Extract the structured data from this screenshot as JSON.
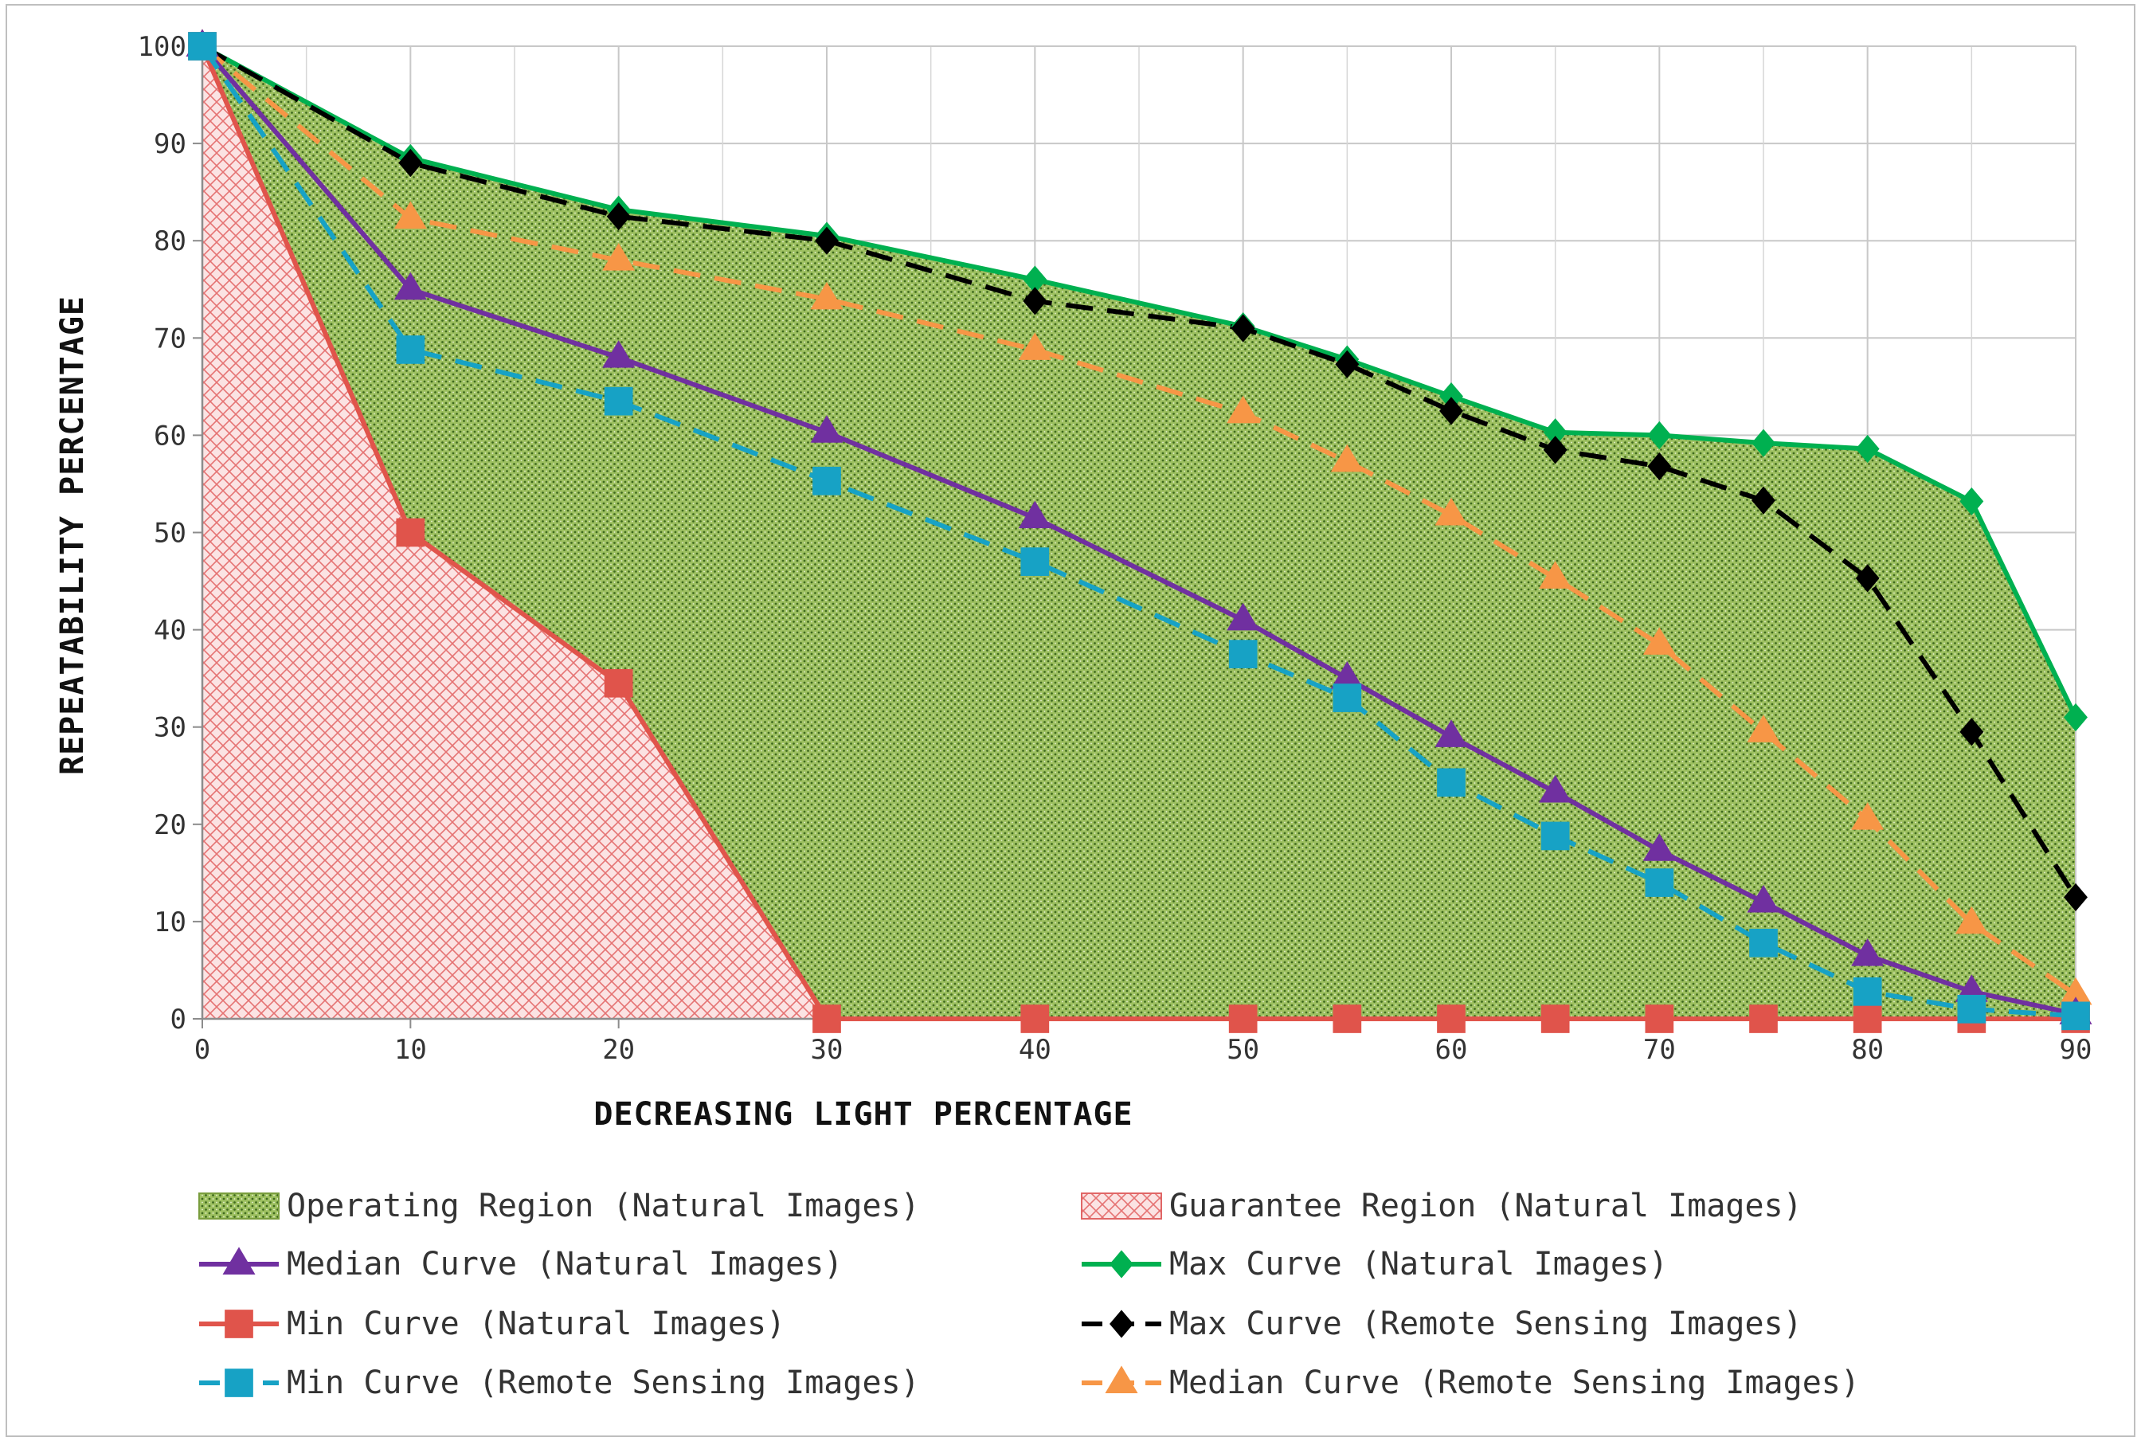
{
  "chart_data": {
    "type": "line",
    "xlabel": "DECREASING LIGHT PERCENTAGE",
    "ylabel": "REPEATABILITY PERCENTAGE",
    "xlim": [
      0,
      90
    ],
    "ylim": [
      0,
      100
    ],
    "x_ticks": [
      0,
      10,
      20,
      30,
      40,
      50,
      60,
      70,
      80,
      90
    ],
    "x_tick_labels": [
      "0",
      "10",
      "20",
      "30",
      "40",
      "50",
      "60",
      "70",
      "80",
      "90"
    ],
    "y_ticks": [
      0,
      10,
      20,
      30,
      40,
      50,
      60,
      70,
      80,
      90,
      100
    ],
    "y_tick_labels": [
      "0",
      "10",
      "20",
      "30",
      "40",
      "50",
      "60",
      "70",
      "80",
      "90",
      "100"
    ],
    "x_minor_gridlines": [
      5,
      15,
      25,
      35,
      45,
      55,
      65,
      75,
      85
    ],
    "grid": true,
    "legend_position": "bottom",
    "regions": [
      {
        "name": "Operating Region (Natural Images)",
        "pattern": "dotted",
        "fill_color": "#9bbb59",
        "dot_color": "#4f7a28",
        "upper": "Max Curve (Natural Images)",
        "lower": "Min Curve (Natural Images)"
      },
      {
        "name": "Guarantee Region (Natural Images)",
        "pattern": "crosshatch",
        "fill_color": "#fde9e9",
        "line_color": "#e06666",
        "upper": "Min Curve (Natural Images)",
        "lower": "axis"
      }
    ],
    "series": [
      {
        "name": "Median Curve (Natural Images)",
        "color": "#7030a0",
        "marker": "triangle",
        "dash": false,
        "x": [
          0,
          10,
          20,
          30,
          40,
          50,
          55,
          60,
          65,
          70,
          75,
          80,
          85,
          90
        ],
        "y": [
          100,
          75,
          68,
          60.3,
          51.5,
          41,
          35,
          29,
          23.3,
          17.3,
          12,
          6.5,
          2.8,
          0.5
        ]
      },
      {
        "name": "Max Curve (Natural Images)",
        "color": "#00b050",
        "marker": "diamond",
        "dash": false,
        "x": [
          0,
          10,
          20,
          30,
          40,
          50,
          55,
          60,
          65,
          70,
          75,
          80,
          85,
          90
        ],
        "y": [
          100,
          88.5,
          83.2,
          80.5,
          76,
          71.2,
          67.8,
          64,
          60.3,
          60,
          59.2,
          58.6,
          53.2,
          31
        ]
      },
      {
        "name": "Min Curve (Natural Images)",
        "color": "#e0544b",
        "marker": "square",
        "dash": false,
        "x": [
          0,
          10,
          20,
          30,
          40,
          50,
          55,
          60,
          65,
          70,
          75,
          80,
          85,
          90
        ],
        "y": [
          100,
          50,
          34.5,
          0,
          0,
          0,
          0,
          0,
          0,
          0,
          0,
          0,
          0,
          0
        ]
      },
      {
        "name": "Max Curve (Remote Sensing Images)",
        "color": "#000000",
        "marker": "diamond",
        "dash": true,
        "x": [
          0,
          10,
          20,
          30,
          40,
          50,
          55,
          60,
          65,
          70,
          75,
          80,
          85,
          90
        ],
        "y": [
          100,
          88,
          82.5,
          80,
          73.8,
          71,
          67.3,
          62.5,
          58.5,
          56.8,
          53.3,
          45.3,
          29.5,
          12.5
        ]
      },
      {
        "name": "Min Curve (Remote Sensing Images)",
        "color": "#17a2c5",
        "marker": "square",
        "dash": true,
        "x": [
          0,
          10,
          20,
          30,
          40,
          50,
          55,
          60,
          65,
          70,
          75,
          80,
          85,
          90
        ],
        "y": [
          100,
          68.8,
          63.5,
          55.3,
          47,
          37.5,
          33,
          24.3,
          18.8,
          14,
          7.8,
          2.8,
          1,
          0.3
        ]
      },
      {
        "name": "Median Curve (Remote Sensing Images)",
        "color": "#f79646",
        "marker": "triangle",
        "dash": true,
        "x": [
          0,
          10,
          20,
          30,
          40,
          50,
          55,
          60,
          65,
          70,
          75,
          80,
          85,
          90
        ],
        "y": [
          100,
          82.3,
          78,
          74,
          68.8,
          62.3,
          57.3,
          51.8,
          45.3,
          38.5,
          29.5,
          20.5,
          9.8,
          2.5
        ]
      }
    ],
    "legend": [
      {
        "label": "Operating Region (Natural Images)",
        "kind": "region",
        "ref": 0
      },
      {
        "label": "Guarantee Region (Natural Images)",
        "kind": "region",
        "ref": 1
      },
      {
        "label": "Median Curve (Natural Images)",
        "kind": "series",
        "ref": 0
      },
      {
        "label": "Max Curve (Natural Images)",
        "kind": "series",
        "ref": 1
      },
      {
        "label": "Min Curve (Natural Images)",
        "kind": "series",
        "ref": 2
      },
      {
        "label": "Max Curve (Remote Sensing Images)",
        "kind": "series",
        "ref": 3
      },
      {
        "label": "Min Curve (Remote Sensing Images)",
        "kind": "series",
        "ref": 4
      },
      {
        "label": "Median Curve (Remote Sensing Images)",
        "kind": "series",
        "ref": 5
      }
    ]
  }
}
